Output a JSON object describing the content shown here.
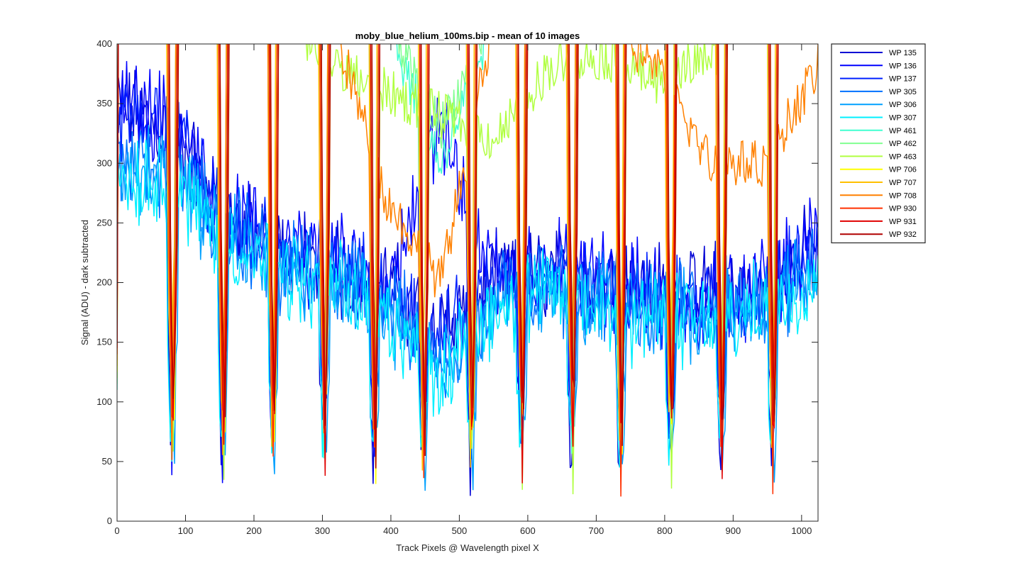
{
  "chart_data": {
    "type": "line",
    "title": "moby_blue_helium_100ms.bip - mean of 10 images",
    "xlabel": "Track Pixels @ Wavelength pixel X",
    "ylabel": "Signal (ADU) - dark subtracted",
    "xlim": [
      0,
      1024
    ],
    "ylim": [
      0,
      400
    ],
    "xticks": [
      0,
      100,
      200,
      300,
      400,
      500,
      600,
      700,
      800,
      900,
      1000
    ],
    "yticks": [
      0,
      50,
      100,
      150,
      200,
      250,
      300,
      350,
      400
    ],
    "grid": false,
    "legend_position": "outside-top-right",
    "dips_x": [
      78,
      152,
      225,
      300,
      373,
      445,
      515,
      588,
      662,
      733,
      806,
      880,
      955
    ],
    "series": [
      {
        "name": "WP 135",
        "color": "#0000d4",
        "approx_level": [
          345,
          330,
          255,
          225,
          215,
          200,
          160,
          200,
          210,
          200,
          195,
          190,
          195,
          230
        ]
      },
      {
        "name": "WP 136",
        "color": "#0000ff",
        "approx_level": [
          350,
          340,
          260,
          230,
          220,
          195,
          330,
          205,
          215,
          205,
          190,
          185,
          200,
          235
        ]
      },
      {
        "name": "WP 137",
        "color": "#0020ff",
        "approx_level": [
          340,
          335,
          250,
          220,
          210,
          190,
          150,
          195,
          205,
          195,
          185,
          180,
          190,
          225
        ]
      },
      {
        "name": "WP 305",
        "color": "#0070ff",
        "approx_level": [
          300,
          295,
          245,
          215,
          205,
          185,
          130,
          190,
          200,
          190,
          180,
          175,
          185,
          220
        ]
      },
      {
        "name": "WP 306",
        "color": "#00a0ff",
        "approx_level": [
          295,
          290,
          240,
          210,
          200,
          180,
          125,
          185,
          195,
          185,
          175,
          170,
          180,
          215
        ]
      },
      {
        "name": "WP 307",
        "color": "#00f0ff",
        "approx_level": [
          290,
          285,
          235,
          205,
          195,
          175,
          120,
          180,
          190,
          180,
          170,
          165,
          175,
          210
        ]
      },
      {
        "name": "WP 461",
        "color": "#40ffd0",
        "approx_level": [
          420,
          420,
          420,
          420,
          420,
          420,
          300,
          420,
          420,
          420,
          420,
          400,
          420,
          420
        ]
      },
      {
        "name": "WP 462",
        "color": "#80ff90",
        "approx_level": [
          420,
          420,
          420,
          420,
          420,
          420,
          330,
          420,
          420,
          420,
          420,
          420,
          420,
          420
        ]
      },
      {
        "name": "WP 463",
        "color": "#b0ff40",
        "approx_level": [
          420,
          420,
          420,
          420,
          380,
          360,
          340,
          320,
          380,
          390,
          370,
          390,
          420,
          420
        ]
      },
      {
        "name": "WP 706",
        "color": "#ffff00",
        "approx_level": [
          420,
          420,
          420,
          420,
          420,
          420,
          420,
          420,
          420,
          420,
          420,
          420,
          420,
          420
        ]
      },
      {
        "name": "WP 707",
        "color": "#ffc000",
        "approx_level": [
          420,
          420,
          420,
          420,
          420,
          420,
          420,
          420,
          420,
          420,
          420,
          420,
          420,
          420
        ]
      },
      {
        "name": "WP 708",
        "color": "#ff8000",
        "approx_level": [
          420,
          420,
          420,
          420,
          420,
          270,
          200,
          420,
          420,
          420,
          380,
          300,
          300,
          380
        ]
      },
      {
        "name": "WP 930",
        "color": "#ff3000",
        "approx_level": [
          420,
          420,
          420,
          420,
          420,
          420,
          420,
          420,
          420,
          420,
          420,
          420,
          420,
          420
        ]
      },
      {
        "name": "WP 931",
        "color": "#e00000",
        "approx_level": [
          420,
          420,
          420,
          420,
          420,
          420,
          420,
          420,
          420,
          420,
          420,
          420,
          420,
          420
        ]
      },
      {
        "name": "WP 932",
        "color": "#b00000",
        "approx_level": [
          420,
          420,
          420,
          420,
          420,
          420,
          420,
          420,
          420,
          420,
          420,
          420,
          420,
          420
        ]
      }
    ]
  }
}
